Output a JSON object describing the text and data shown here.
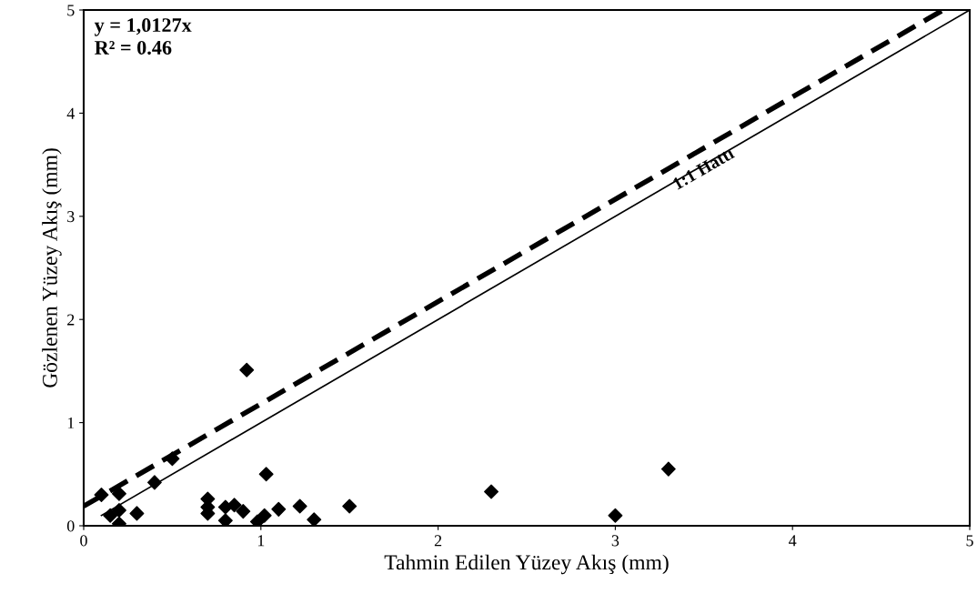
{
  "chart_data": {
    "type": "scatter",
    "xlabel": "Tahmin Edilen Yüzey Akış (mm)",
    "ylabel": "Gözlenen Yüzey Akış (mm)",
    "xlim": [
      0,
      5
    ],
    "ylim": [
      0,
      5
    ],
    "xticks": [
      0,
      1,
      2,
      3,
      4,
      5
    ],
    "yticks": [
      0,
      1,
      2,
      3,
      4,
      5
    ],
    "grid": false,
    "series": [
      {
        "marker": "diamond",
        "color": "#000000",
        "x": [
          0.1,
          0.15,
          0.2,
          0.2,
          0.2,
          0.3,
          0.4,
          0.5,
          0.7,
          0.7,
          0.7,
          0.8,
          0.8,
          0.85,
          0.9,
          0.92,
          0.98,
          1.02,
          1.03,
          1.1,
          1.22,
          1.3,
          1.5,
          2.3,
          3.0,
          3.3
        ],
        "values": [
          0.3,
          0.1,
          0.31,
          0.15,
          0.02,
          0.12,
          0.42,
          0.65,
          0.12,
          0.18,
          0.26,
          0.05,
          0.18,
          0.2,
          0.14,
          1.51,
          0.04,
          0.1,
          0.5,
          0.16,
          0.19,
          0.06,
          0.19,
          0.33,
          0.1,
          0.55
        ]
      },
      {
        "type": "line",
        "color": "#000000",
        "line_style": "dashed",
        "x": [
          0,
          4.85
        ],
        "values": [
          0.19,
          5
        ]
      },
      {
        "type": "line",
        "color": "#000000",
        "line_style": "solid",
        "x": [
          0.1,
          5
        ],
        "values": [
          0.1,
          5
        ]
      }
    ],
    "annotations": [
      "y = 1,0127x\nR² = 0.46",
      {
        "text": "1:1 Hattı",
        "x": 3.5,
        "y": 3.45
      }
    ]
  }
}
